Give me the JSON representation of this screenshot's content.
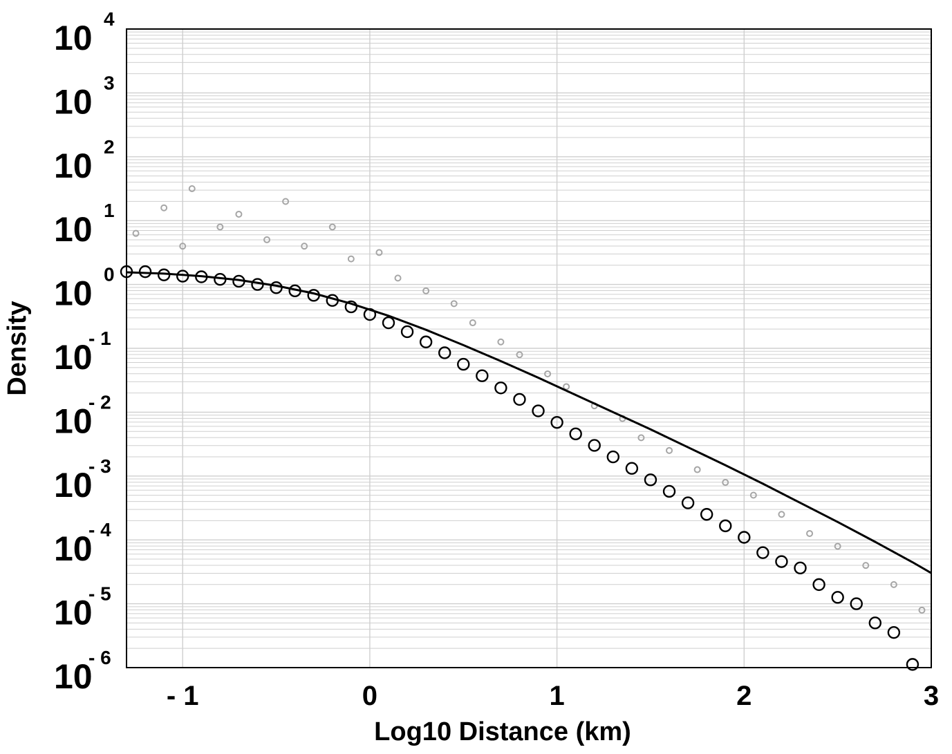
{
  "chart_data": {
    "type": "scatter",
    "title": "",
    "xlabel": "Log10 Distance (km)",
    "ylabel": "Density",
    "xlim": [
      -1.3,
      3.0
    ],
    "ylim_log10": [
      -6,
      4
    ],
    "y_scale": "log",
    "grid": true,
    "x_ticks": [
      {
        "value": -1,
        "label": "- 1"
      },
      {
        "value": 0,
        "label": "0"
      },
      {
        "value": 1,
        "label": "1"
      },
      {
        "value": 2,
        "label": "2"
      },
      {
        "value": 3,
        "label": "3"
      }
    ],
    "y_ticks": [
      {
        "value": 4,
        "base": "10",
        "exp": "4"
      },
      {
        "value": 3,
        "base": "10",
        "exp": "3"
      },
      {
        "value": 2,
        "base": "10",
        "exp": "2"
      },
      {
        "value": 1,
        "base": "10",
        "exp": "1"
      },
      {
        "value": 0,
        "base": "10",
        "exp": "0"
      },
      {
        "value": -1,
        "base": "10",
        "exp": "- 1"
      },
      {
        "value": -2,
        "base": "10",
        "exp": "- 2"
      },
      {
        "value": -3,
        "base": "10",
        "exp": "- 3"
      },
      {
        "value": -4,
        "base": "10",
        "exp": "- 4"
      },
      {
        "value": -5,
        "base": "10",
        "exp": "- 5"
      },
      {
        "value": -6,
        "base": "10",
        "exp": "- 6"
      }
    ],
    "colors": {
      "scatter": "#a6a6a6",
      "fit": "#000000",
      "grid": "#cfcfcf"
    },
    "fit_points": {
      "x": [
        -1.3,
        -1.2,
        -1.1,
        -1.0,
        -0.9,
        -0.8,
        -0.7,
        -0.6,
        -0.5,
        -0.4,
        -0.3,
        -0.2,
        -0.1,
        0.0,
        0.1,
        0.2,
        0.3,
        0.4,
        0.5,
        0.6,
        0.7,
        0.8,
        0.9,
        1.0,
        1.1,
        1.2,
        1.3,
        1.4,
        1.5,
        1.6,
        1.7,
        1.8,
        1.9,
        2.0,
        2.1,
        2.2,
        2.3,
        2.4,
        2.5,
        2.6,
        2.7,
        2.8,
        2.9
      ],
      "log10_density": [
        0.2,
        0.2,
        0.15,
        0.13,
        0.12,
        0.08,
        0.05,
        0.0,
        -0.05,
        -0.1,
        -0.17,
        -0.25,
        -0.35,
        -0.47,
        -0.6,
        -0.74,
        -0.9,
        -1.07,
        -1.25,
        -1.43,
        -1.62,
        -1.8,
        -1.98,
        -2.16,
        -2.34,
        -2.52,
        -2.7,
        -2.88,
        -3.06,
        -3.24,
        -3.42,
        -3.6,
        -3.78,
        -3.96,
        -4.2,
        -4.34,
        -4.44,
        -4.7,
        -4.9,
        -5.0,
        -5.3,
        -5.45,
        -5.95
      ]
    },
    "fit_curve": {
      "x": [
        -1.3,
        -1.1,
        -0.9,
        -0.7,
        -0.5,
        -0.3,
        -0.1,
        0.1,
        0.3,
        0.5,
        0.7,
        0.9,
        1.1,
        1.3,
        1.5,
        1.7,
        1.9,
        2.1,
        2.3,
        2.5,
        2.7,
        2.9,
        3.0
      ],
      "log10_density": [
        0.19,
        0.17,
        0.13,
        0.07,
        -0.02,
        -0.14,
        -0.3,
        -0.49,
        -0.71,
        -0.95,
        -1.2,
        -1.46,
        -1.73,
        -2.0,
        -2.27,
        -2.55,
        -2.83,
        -3.12,
        -3.42,
        -3.72,
        -4.03,
        -4.35,
        -4.52
      ]
    },
    "scatter_points": {
      "x": [
        -1.25,
        -1.1,
        -1.0,
        -0.95,
        -0.8,
        -0.7,
        -0.55,
        -0.45,
        -0.35,
        -0.2,
        -0.1,
        0.05,
        0.15,
        0.3,
        0.45,
        0.55,
        0.7,
        0.8,
        0.95,
        1.05,
        1.2,
        1.35,
        1.45,
        1.6,
        1.75,
        1.9,
        2.05,
        2.2,
        2.35,
        2.5,
        2.65,
        2.8,
        2.95
      ],
      "log10_density": [
        0.8,
        1.2,
        0.6,
        1.5,
        0.9,
        1.1,
        0.7,
        1.3,
        0.6,
        0.9,
        0.4,
        0.5,
        0.1,
        -0.1,
        -0.3,
        -0.6,
        -0.9,
        -1.1,
        -1.4,
        -1.6,
        -1.9,
        -2.1,
        -2.4,
        -2.6,
        -2.9,
        -3.1,
        -3.3,
        -3.6,
        -3.9,
        -4.1,
        -4.4,
        -4.7,
        -5.1
      ]
    }
  }
}
